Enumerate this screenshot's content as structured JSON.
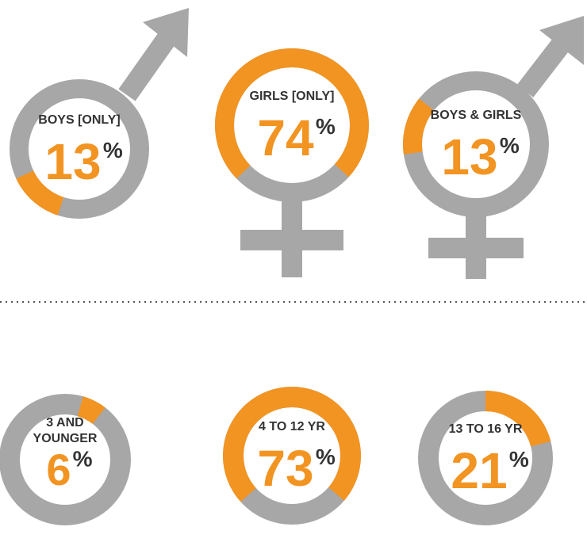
{
  "chart_data": [
    {
      "type": "donut",
      "title": "BOYS [ONLY]",
      "values": [
        13
      ],
      "unit": "%",
      "color": "#f29422",
      "track_color": "#a7a7a7"
    },
    {
      "type": "donut",
      "title": "GIRLS [ONLY]",
      "values": [
        74
      ],
      "unit": "%",
      "color": "#f29422",
      "track_color": "#a7a7a7"
    },
    {
      "type": "donut",
      "title": "BOYS & GIRLS",
      "values": [
        13
      ],
      "unit": "%",
      "color": "#f29422",
      "track_color": "#a7a7a7"
    },
    {
      "type": "donut",
      "title": "3 AND YOUNGER",
      "values": [
        6
      ],
      "unit": "%",
      "color": "#f29422",
      "track_color": "#a7a7a7"
    },
    {
      "type": "donut",
      "title": "4 TO 12 YR",
      "values": [
        73
      ],
      "unit": "%",
      "color": "#f29422",
      "track_color": "#a7a7a7"
    },
    {
      "type": "donut",
      "title": "13 TO 16 YR",
      "values": [
        21
      ],
      "unit": "%",
      "color": "#f29422",
      "track_color": "#a7a7a7"
    }
  ]
}
